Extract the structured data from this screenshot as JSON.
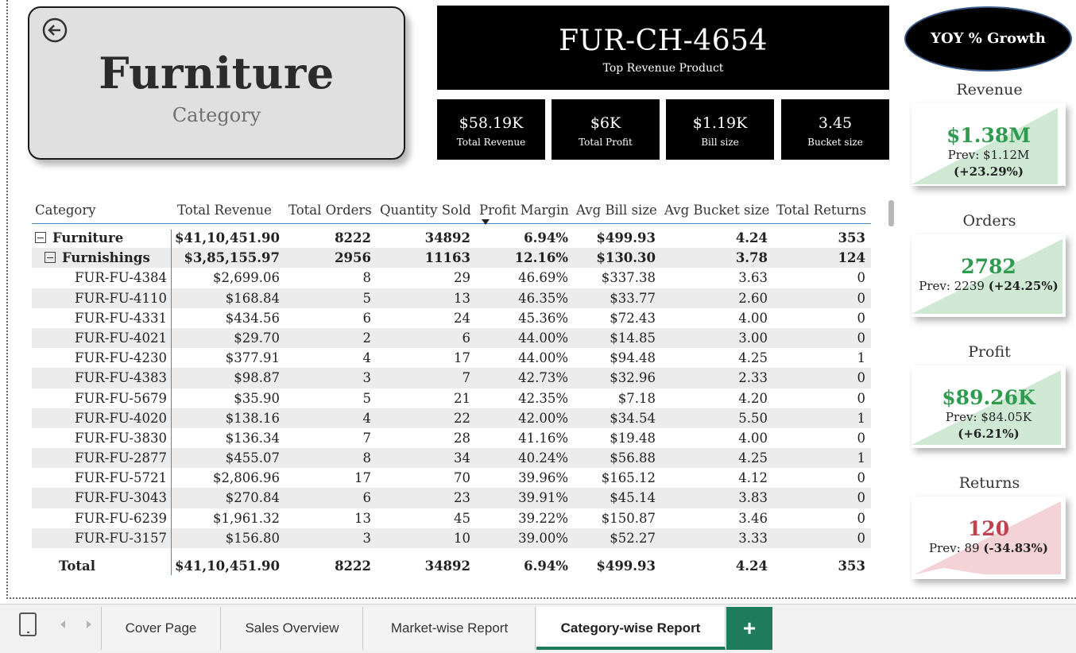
{
  "category_card": {
    "title": "Furniture",
    "subtitle": "Category"
  },
  "top_product": {
    "code": "FUR-CH-4654",
    "label": "Top Revenue Product"
  },
  "kpis": [
    {
      "value": "$58.19K",
      "label": "Total Revenue"
    },
    {
      "value": "$6K",
      "label": "Total Profit"
    },
    {
      "value": "$1.19K",
      "label": "Bill size"
    },
    {
      "value": "3.45",
      "label": "Bucket size"
    }
  ],
  "yoy": {
    "title": "YOY % Growth",
    "cards": [
      {
        "heading": "Revenue",
        "value": "$1.38M",
        "prev": "Prev: $1.12M",
        "change": "(+23.29%)",
        "color": "#2e9b4f"
      },
      {
        "heading": "Orders",
        "value": "2782",
        "prev": "Prev: 2239",
        "change": "(+24.25%)",
        "color": "#2e9b4f"
      },
      {
        "heading": "Profit",
        "value": "$89.26K",
        "prev": "Prev: $84.05K",
        "change": "(+6.21%)",
        "color": "#2e9b4f"
      },
      {
        "heading": "Returns",
        "value": "120",
        "prev": "Prev: 89",
        "change": "(-34.83%)",
        "color": "#c0424e"
      }
    ]
  },
  "table": {
    "headers": [
      "Category",
      "Total Revenue",
      "Total Orders",
      "Quantity Sold",
      "Profit Margin",
      "Avg Bill size",
      "Avg Bucket size",
      "Total Returns"
    ],
    "group": [
      "Furniture",
      "$41,10,451.90",
      "8222",
      "34892",
      "6.94%",
      "$499.93",
      "4.24",
      "353"
    ],
    "subgroup": [
      "Furnishings",
      "$3,85,155.97",
      "2956",
      "11163",
      "12.16%",
      "$130.30",
      "3.78",
      "124"
    ],
    "rows": [
      [
        "FUR-FU-4384",
        "$2,699.06",
        "8",
        "29",
        "46.69%",
        "$337.38",
        "3.63",
        "0"
      ],
      [
        "FUR-FU-4110",
        "$168.84",
        "5",
        "13",
        "46.35%",
        "$33.77",
        "2.60",
        "0"
      ],
      [
        "FUR-FU-4331",
        "$434.56",
        "6",
        "24",
        "45.36%",
        "$72.43",
        "4.00",
        "0"
      ],
      [
        "FUR-FU-4021",
        "$29.70",
        "2",
        "6",
        "44.00%",
        "$14.85",
        "3.00",
        "0"
      ],
      [
        "FUR-FU-4230",
        "$377.91",
        "4",
        "17",
        "44.00%",
        "$94.48",
        "4.25",
        "1"
      ],
      [
        "FUR-FU-4383",
        "$98.87",
        "3",
        "7",
        "42.73%",
        "$32.96",
        "2.33",
        "0"
      ],
      [
        "FUR-FU-5679",
        "$35.90",
        "5",
        "21",
        "42.35%",
        "$7.18",
        "4.20",
        "0"
      ],
      [
        "FUR-FU-4020",
        "$138.16",
        "4",
        "22",
        "42.00%",
        "$34.54",
        "5.50",
        "1"
      ],
      [
        "FUR-FU-3830",
        "$136.34",
        "7",
        "28",
        "41.16%",
        "$19.48",
        "4.00",
        "0"
      ],
      [
        "FUR-FU-2877",
        "$455.07",
        "8",
        "34",
        "40.24%",
        "$56.88",
        "4.25",
        "1"
      ],
      [
        "FUR-FU-5721",
        "$2,806.96",
        "17",
        "70",
        "39.96%",
        "$165.12",
        "4.12",
        "0"
      ],
      [
        "FUR-FU-3043",
        "$270.84",
        "6",
        "23",
        "39.91%",
        "$45.14",
        "3.83",
        "0"
      ],
      [
        "FUR-FU-6239",
        "$1,961.32",
        "13",
        "45",
        "39.22%",
        "$150.87",
        "3.46",
        "0"
      ],
      [
        "FUR-FU-3157",
        "$156.80",
        "3",
        "10",
        "39.00%",
        "$52.27",
        "3.33",
        "0"
      ]
    ],
    "total": [
      "Total",
      "$41,10,451.90",
      "8222",
      "34892",
      "6.94%",
      "$499.93",
      "4.24",
      "353"
    ]
  },
  "tabs": [
    "Cover Page",
    "Sales Overview",
    "Market-wise Report",
    "Category-wise Report"
  ],
  "active_tab": "Category-wise Report",
  "add_tab_label": "+"
}
